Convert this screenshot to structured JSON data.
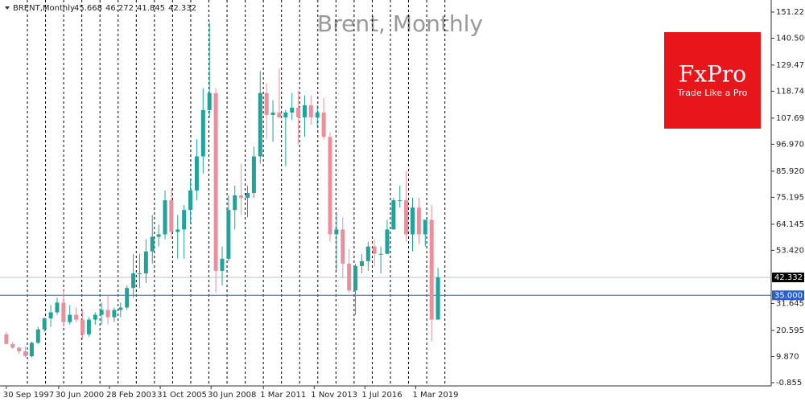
{
  "chart_data": {
    "type": "candlestick",
    "symbol": "BRENT,Monthly",
    "quote": [
      45.668,
      46.272,
      41.845,
      42.332
    ],
    "title": "Brent, Monthly",
    "brand": "FxPro",
    "tagline": "Trade Like a Pro",
    "up_color": "#1fa39a",
    "down_color": "#e8909c",
    "open": [
      19,
      15,
      13.5,
      12,
      10,
      15.5,
      21,
      25.5,
      28,
      32,
      24,
      27,
      25,
      19,
      25,
      27,
      29,
      26,
      29,
      30,
      38,
      44,
      44,
      53,
      59,
      60,
      74,
      61,
      62,
      70,
      78,
      92,
      111,
      118,
      45,
      50,
      70,
      76,
      75,
      77,
      92,
      118,
      109,
      110,
      108,
      110,
      112,
      108,
      113,
      108,
      110,
      100,
      60,
      62,
      48,
      37,
      47,
      49,
      55,
      52,
      52,
      62,
      74,
      74,
      60,
      71,
      60,
      66,
      25
    ],
    "high": [
      20,
      16,
      14,
      14,
      16,
      22,
      26,
      31,
      34,
      37,
      31,
      30,
      29,
      26,
      28,
      32,
      35,
      30,
      32,
      39,
      52,
      52,
      58,
      68,
      64,
      78,
      79,
      68,
      72,
      82,
      99,
      120,
      147,
      120,
      55,
      76,
      80,
      89,
      80,
      96,
      127,
      122,
      115,
      128,
      111,
      118,
      119,
      117,
      117,
      113,
      116,
      102,
      69,
      67,
      54,
      48,
      52,
      57,
      58,
      55,
      66,
      75,
      80,
      86,
      75,
      75,
      65,
      72,
      46.272
    ],
    "low": [
      15,
      13,
      11,
      9.5,
      9.5,
      15,
      20,
      22,
      27,
      22,
      23,
      24,
      17,
      18,
      23,
      23,
      23,
      24,
      26,
      29,
      34,
      38,
      40,
      48,
      55,
      58,
      58,
      50,
      50,
      65,
      74,
      85,
      108,
      36,
      39,
      49,
      62,
      68,
      67,
      75,
      89,
      99,
      98,
      108,
      88,
      107,
      97,
      100,
      105,
      104,
      99,
      57,
      45,
      42,
      36,
      27,
      44,
      45,
      47,
      44,
      52,
      62,
      71,
      57,
      53,
      56,
      55,
      16,
      25
    ],
    "close": [
      15,
      13.5,
      12,
      10,
      15.5,
      21,
      25.5,
      28,
      32,
      24,
      27,
      25,
      19,
      25,
      27,
      29,
      26,
      29,
      30,
      38,
      44,
      44,
      53,
      59,
      60,
      74,
      61,
      62,
      70,
      78,
      92,
      111,
      118,
      45,
      50,
      70,
      76,
      75,
      77,
      92,
      118,
      109,
      110,
      108,
      110,
      112,
      108,
      113,
      108,
      110,
      100,
      60,
      62,
      48,
      37,
      47,
      49,
      55,
      52,
      52,
      62,
      74,
      74,
      60,
      71,
      60,
      66,
      25,
      42.332
    ],
    "xlim": [
      -1,
      120.5
    ],
    "xticks": [
      {
        "value": 0,
        "label": "30 Sep 1997"
      },
      {
        "value": 8.25,
        "label": "30 Jun 2000"
      },
      {
        "value": 16.25,
        "label": "28 Feb 2003"
      },
      {
        "value": 24.25,
        "label": "31 Oct 2005"
      },
      {
        "value": 32.25,
        "label": "30 Jun 2008"
      },
      {
        "value": 40.5,
        "label": "1 Mar 2011"
      },
      {
        "value": 48.5,
        "label": "1 Nov 2013"
      },
      {
        "value": 56.5,
        "label": "1 Jul 2016"
      },
      {
        "value": 64.5,
        "label": "1 Mar 2019"
      }
    ],
    "ylim": [
      -2.19,
      156.17
    ],
    "yticks": [
      151.225,
      {
        "value": 140.5,
        "label": "140.500"
      },
      129.47,
      118.745,
      107.695,
      {
        "value": 96.97,
        "label": "96.970"
      },
      {
        "value": 85.92,
        "label": "85.920"
      },
      75.195,
      64.145,
      {
        "value": 53.42,
        "label": "53.420"
      },
      31.645,
      20.595,
      {
        "value": 9.87,
        "label": "9.870"
      },
      -0.855
    ],
    "price_lines": [
      {
        "value": 42.332,
        "label": "42.332",
        "line_color": "#b8c0c8",
        "box_color": "#000000"
      },
      {
        "value": 35,
        "label": "35.000",
        "line_color": "#2a5fc8",
        "box_color": "#2a5fc8"
      }
    ]
  }
}
